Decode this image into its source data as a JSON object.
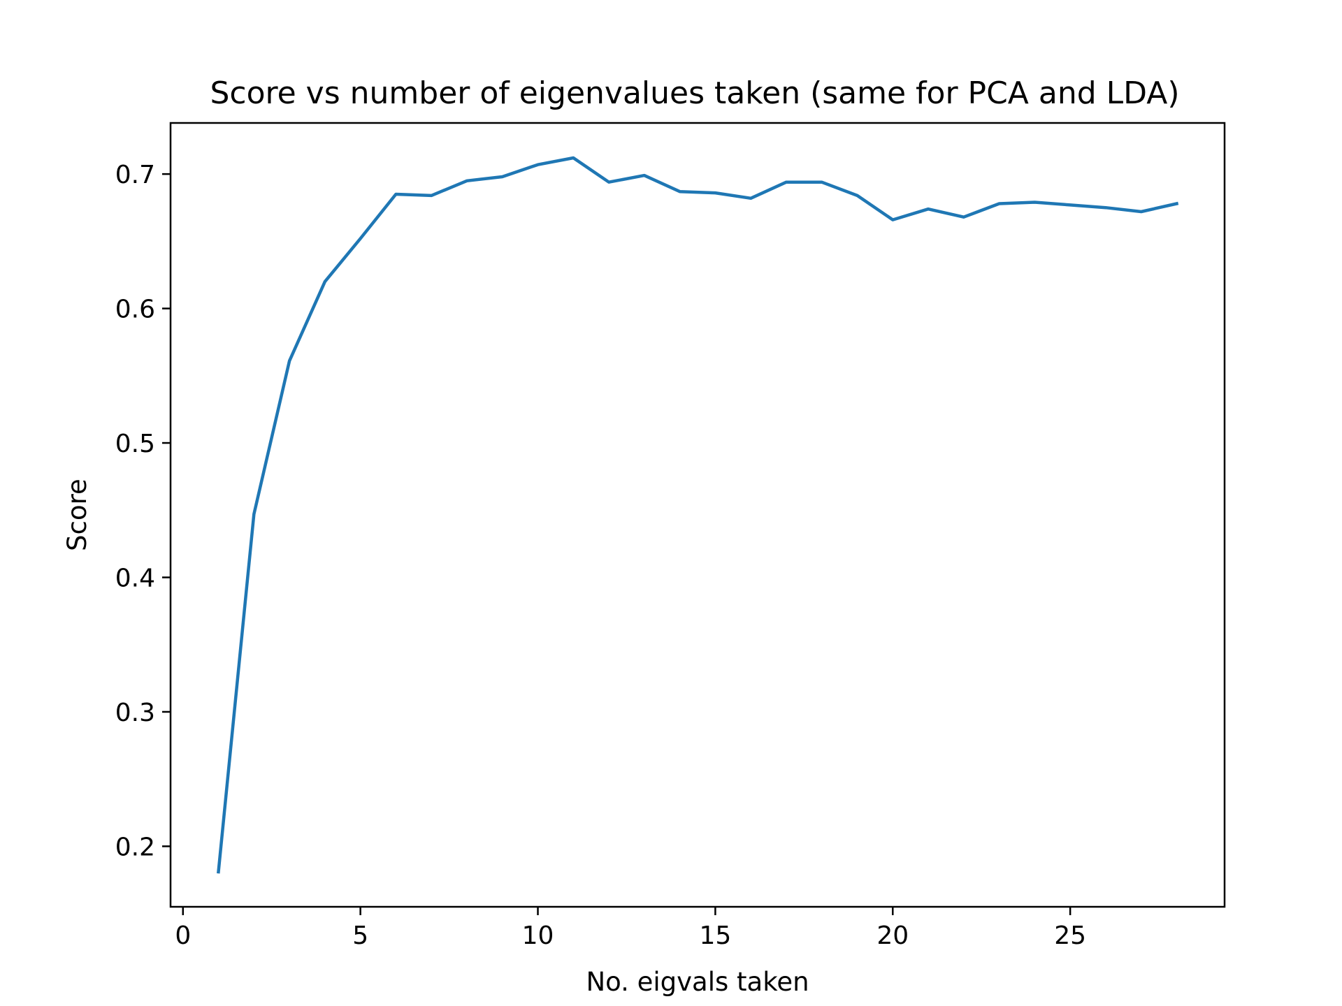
{
  "chart_data": {
    "type": "line",
    "title": "Score vs number of eigenvalues taken (same for PCA and LDA)",
    "xlabel": "No. eigvals taken",
    "ylabel": "Score",
    "xlim": [
      -0.35,
      29.35
    ],
    "ylim": [
      0.155,
      0.738
    ],
    "xticks": [
      0,
      5,
      10,
      15,
      20,
      25
    ],
    "xtick_labels": [
      "0",
      "5",
      "10",
      "15",
      "20",
      "25"
    ],
    "yticks": [
      0.2,
      0.3,
      0.4,
      0.5,
      0.6,
      0.7
    ],
    "ytick_labels": [
      "0.2",
      "0.3",
      "0.4",
      "0.5",
      "0.6",
      "0.7"
    ],
    "grid": false,
    "legend": "none",
    "series": [
      {
        "color": "#1f77b4",
        "x": [
          1,
          2,
          3,
          4,
          5,
          6,
          7,
          8,
          9,
          10,
          11,
          12,
          13,
          14,
          15,
          16,
          17,
          18,
          19,
          20,
          21,
          22,
          23,
          24,
          25,
          26,
          27,
          28
        ],
        "y": [
          0.181,
          0.447,
          0.561,
          0.62,
          0.652,
          0.685,
          0.684,
          0.695,
          0.698,
          0.707,
          0.712,
          0.694,
          0.699,
          0.687,
          0.686,
          0.682,
          0.694,
          0.694,
          0.684,
          0.666,
          0.674,
          0.668,
          0.678,
          0.679,
          0.677,
          0.675,
          0.672,
          0.678
        ]
      }
    ]
  }
}
